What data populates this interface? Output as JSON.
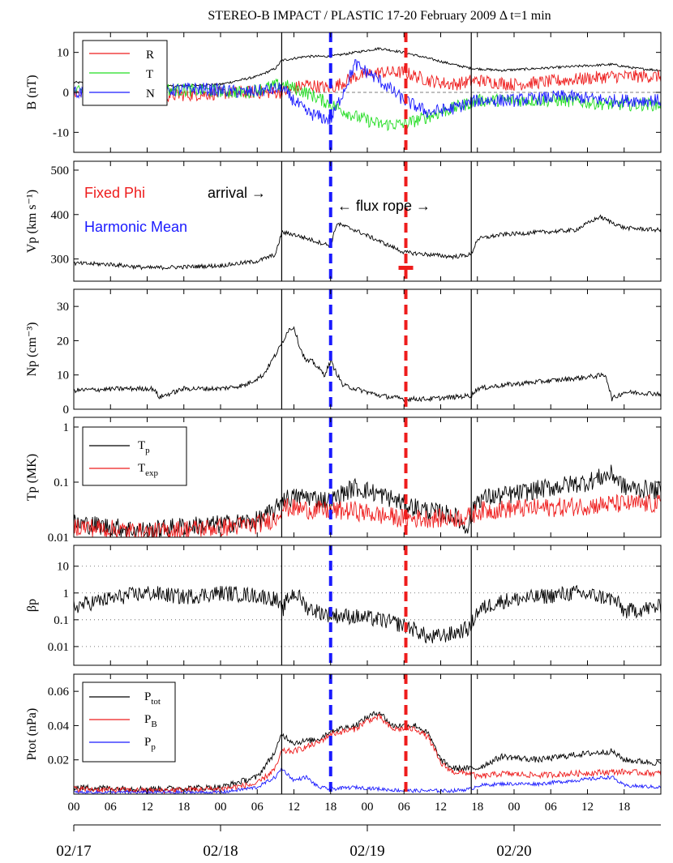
{
  "chart_data": {
    "title": "STEREO-B IMPACT / PLASTIC  17-20 February 2009   Δ t=1 min",
    "type": "line",
    "x_unit": "hours since 2009-02-17 00:00 UT",
    "xlim": [
      0,
      96
    ],
    "x_ticks": [
      0,
      6,
      12,
      18,
      24,
      30,
      36,
      42,
      48,
      54,
      60,
      66,
      72,
      78,
      84,
      90
    ],
    "x_tick_labels": [
      "00",
      "06",
      "12",
      "18",
      "00",
      "06",
      "12",
      "18",
      "00",
      "06",
      "12",
      "18",
      "00",
      "06",
      "12",
      "18"
    ],
    "date_ticks": [
      0,
      24,
      48,
      72
    ],
    "date_labels": [
      "02/17",
      "02/18",
      "02/19",
      "02/20"
    ],
    "markers": [
      {
        "name": "shock arrival",
        "x": 34.0,
        "color": "#000000",
        "style": "solid"
      },
      {
        "name": "Harmonic Mean boundary",
        "x": 42.0,
        "color": "#1a1aff",
        "style": "dashed"
      },
      {
        "name": "Fixed Phi boundary",
        "x": 54.3,
        "color": "#ee1c1c",
        "style": "dashed"
      },
      {
        "name": "flux rope end",
        "x": 65.0,
        "color": "#000000",
        "style": "solid"
      }
    ],
    "panels": [
      {
        "id": "B",
        "ylabel": "B (nT)",
        "scale": "linear",
        "ylim": [
          -15,
          15
        ],
        "yticks": [
          -10,
          0,
          10
        ],
        "ytick_labels": [
          "-10",
          "0",
          "10"
        ],
        "legend": [
          "R",
          "T",
          "N"
        ],
        "series": [
          {
            "name": "|B|",
            "color": "#000000",
            "x": [
              0,
              8,
              16,
              24,
              30,
              33,
              34,
              38,
              42,
              46,
              50,
              54,
              58,
              62,
              65,
              70,
              76,
              82,
              88,
              92,
              96
            ],
            "y": [
              2.5,
              2,
              1.5,
              2,
              4,
              6,
              8,
              9,
              9,
              10,
              11,
              10,
              8.5,
              7,
              6,
              5.5,
              6,
              6.5,
              7,
              6,
              5.5
            ]
          },
          {
            "name": "R",
            "color": "#ee1c1c",
            "x": [
              0,
              10,
              20,
              28,
              34,
              38,
              42,
              46,
              50,
              54,
              58,
              62,
              66,
              72,
              80,
              88,
              96
            ],
            "y": [
              0,
              -1,
              -0.5,
              0,
              0,
              2,
              1,
              4,
              5,
              5,
              3,
              2,
              3,
              2,
              3,
              4,
              4
            ]
          },
          {
            "name": "T",
            "color": "#22dd22",
            "x": [
              0,
              10,
              20,
              28,
              34,
              38,
              42,
              46,
              50,
              54,
              58,
              62,
              66,
              72,
              80,
              88,
              96
            ],
            "y": [
              0,
              1,
              0.5,
              0,
              2,
              0,
              -3,
              -6,
              -8,
              -8,
              -6,
              -4,
              -2,
              -2,
              -2,
              -3,
              -3
            ]
          },
          {
            "name": "N",
            "color": "#1a1aff",
            "x": [
              0,
              10,
              20,
              28,
              34,
              38,
              42,
              46,
              50,
              54,
              58,
              62,
              66,
              72,
              80,
              88,
              96
            ],
            "y": [
              0,
              0,
              1,
              0,
              1,
              -5,
              -7,
              7,
              3,
              -2,
              -5,
              -4,
              -2,
              -2,
              -1,
              -2,
              -2
            ]
          }
        ]
      },
      {
        "id": "Vp",
        "ylabel": "Vp (km s⁻¹)",
        "scale": "linear",
        "ylim": [
          250,
          520
        ],
        "yticks": [
          300,
          400,
          500
        ],
        "ytick_labels": [
          "300",
          "400",
          "500"
        ],
        "annotations": [
          "Fixed Phi",
          "Harmonic Mean",
          "arrival →",
          "←  flux rope  →"
        ],
        "series": [
          {
            "name": "Vp",
            "color": "#000000",
            "x": [
              0,
              6,
              12,
              18,
              24,
              30,
              33,
              34,
              36,
              40,
              42,
              43,
              46,
              50,
              54,
              58,
              62,
              65,
              66,
              70,
              76,
              82,
              86,
              90,
              96
            ],
            "y": [
              290,
              288,
              280,
              282,
              285,
              295,
              310,
              360,
              355,
              338,
              330,
              380,
              365,
              340,
              315,
              310,
              305,
              310,
              345,
              355,
              360,
              365,
              395,
              370,
              365
            ]
          }
        ]
      },
      {
        "id": "Np",
        "ylabel": "Np (cm⁻³)",
        "scale": "linear",
        "ylim": [
          0,
          35
        ],
        "yticks": [
          0,
          10,
          20,
          30
        ],
        "ytick_labels": [
          "0",
          "10",
          "20",
          "30"
        ],
        "series": [
          {
            "name": "Np",
            "color": "#000000",
            "x": [
              0,
              8,
              13,
              14,
              18,
              24,
              28,
              31,
              33,
              34,
              35,
              36,
              37,
              38,
              39,
              41,
              42,
              44,
              46,
              50,
              54,
              58,
              62,
              65,
              66,
              70,
              76,
              82,
              87,
              88,
              90,
              96
            ],
            "y": [
              5.5,
              6,
              6,
              3.5,
              6,
              6,
              7,
              10,
              16,
              19,
              23,
              24,
              18,
              14,
              14,
              10,
              14,
              7,
              6,
              4,
              3,
              3,
              3.5,
              4,
              6,
              7,
              8,
              9,
              10,
              3,
              5,
              4.5
            ]
          }
        ]
      },
      {
        "id": "Tp",
        "ylabel": "Tp (MK)",
        "scale": "log",
        "ylim": [
          0.01,
          1.5
        ],
        "yticks": [
          0.01,
          0.1,
          1
        ],
        "ytick_labels": [
          "0.01",
          "0.1",
          "1"
        ],
        "legend": [
          "T_p",
          "T_exp"
        ],
        "series": [
          {
            "name": "T_p",
            "color": "#000000",
            "x": [
              0,
              12,
              18,
              24,
              30,
              33,
              34,
              38,
              42,
              46,
              50,
              54,
              58,
              62,
              64,
              65,
              66,
              72,
              78,
              84,
              88,
              90,
              96
            ],
            "y": [
              0.018,
              0.013,
              0.016,
              0.017,
              0.02,
              0.03,
              0.05,
              0.055,
              0.045,
              0.08,
              0.06,
              0.04,
              0.03,
              0.025,
              0.015,
              0.02,
              0.05,
              0.06,
              0.08,
              0.1,
              0.14,
              0.08,
              0.07
            ]
          },
          {
            "name": "T_exp",
            "color": "#ee1c1c",
            "x": [
              0,
              12,
              18,
              24,
              30,
              33,
              34,
              38,
              42,
              46,
              50,
              54,
              58,
              62,
              65,
              66,
              72,
              80,
              88,
              96
            ],
            "y": [
              0.016,
              0.012,
              0.014,
              0.015,
              0.017,
              0.022,
              0.035,
              0.032,
              0.03,
              0.03,
              0.025,
              0.022,
              0.022,
              0.022,
              0.024,
              0.03,
              0.033,
              0.035,
              0.04,
              0.04
            ]
          }
        ]
      },
      {
        "id": "beta",
        "ylabel": "βp",
        "scale": "log",
        "ylim": [
          0.002,
          60
        ],
        "yticks": [
          0.01,
          0.1,
          1,
          10
        ],
        "ytick_labels": [
          "0.01",
          "0.1",
          "1",
          "10"
        ],
        "grid": true,
        "series": [
          {
            "name": "beta_p",
            "color": "#000000",
            "x": [
              0,
              6,
              12,
              18,
              24,
              30,
              33,
              34,
              36,
              38,
              40,
              42,
              46,
              50,
              54,
              58,
              62,
              65,
              66,
              70,
              76,
              82,
              88,
              90,
              96
            ],
            "y": [
              0.3,
              0.6,
              1,
              0.7,
              1,
              0.8,
              0.6,
              0.15,
              1,
              0.3,
              0.2,
              0.15,
              0.13,
              0.1,
              0.06,
              0.02,
              0.03,
              0.05,
              0.2,
              0.5,
              0.7,
              1,
              0.6,
              0.2,
              0.3
            ]
          }
        ]
      },
      {
        "id": "Ptot",
        "ylabel": "Ptot (nPa)",
        "scale": "linear",
        "ylim": [
          0,
          0.07
        ],
        "yticks": [
          0.02,
          0.04,
          0.06
        ],
        "ytick_labels": [
          "0.02",
          "0.04",
          "0.06"
        ],
        "legend": [
          "P_tot",
          "P_B",
          "P_p"
        ],
        "series": [
          {
            "name": "P_tot",
            "color": "#000000",
            "x": [
              0,
              12,
              24,
              30,
              33,
              34,
              36,
              40,
              42,
              46,
              48,
              50,
              52,
              56,
              58,
              60,
              62,
              65,
              66,
              70,
              76,
              82,
              88,
              90,
              96
            ],
            "y": [
              0.004,
              0.003,
              0.004,
              0.01,
              0.025,
              0.035,
              0.03,
              0.032,
              0.037,
              0.04,
              0.045,
              0.048,
              0.04,
              0.04,
              0.035,
              0.02,
              0.015,
              0.015,
              0.015,
              0.022,
              0.02,
              0.023,
              0.025,
              0.02,
              0.018
            ]
          },
          {
            "name": "P_B",
            "color": "#ee1c1c",
            "x": [
              0,
              12,
              24,
              30,
              33,
              34,
              36,
              40,
              42,
              46,
              48,
              50,
              52,
              56,
              58,
              60,
              62,
              65,
              66,
              70,
              76,
              82,
              88,
              90,
              96
            ],
            "y": [
              0.003,
              0.002,
              0.003,
              0.006,
              0.015,
              0.025,
              0.025,
              0.03,
              0.035,
              0.038,
              0.043,
              0.045,
              0.038,
              0.038,
              0.033,
              0.018,
              0.013,
              0.012,
              0.01,
              0.012,
              0.011,
              0.012,
              0.013,
              0.013,
              0.012
            ]
          },
          {
            "name": "P_p",
            "color": "#1a1aff",
            "x": [
              0,
              12,
              24,
              30,
              33,
              34,
              36,
              38,
              40,
              42,
              46,
              50,
              54,
              58,
              62,
              65,
              66,
              70,
              76,
              82,
              88,
              90,
              96
            ],
            "y": [
              0.001,
              0.001,
              0.001,
              0.004,
              0.01,
              0.015,
              0.008,
              0.01,
              0.004,
              0.003,
              0.004,
              0.003,
              0.002,
              0.002,
              0.002,
              0.003,
              0.005,
              0.006,
              0.006,
              0.008,
              0.01,
              0.005,
              0.004
            ]
          }
        ]
      }
    ]
  }
}
